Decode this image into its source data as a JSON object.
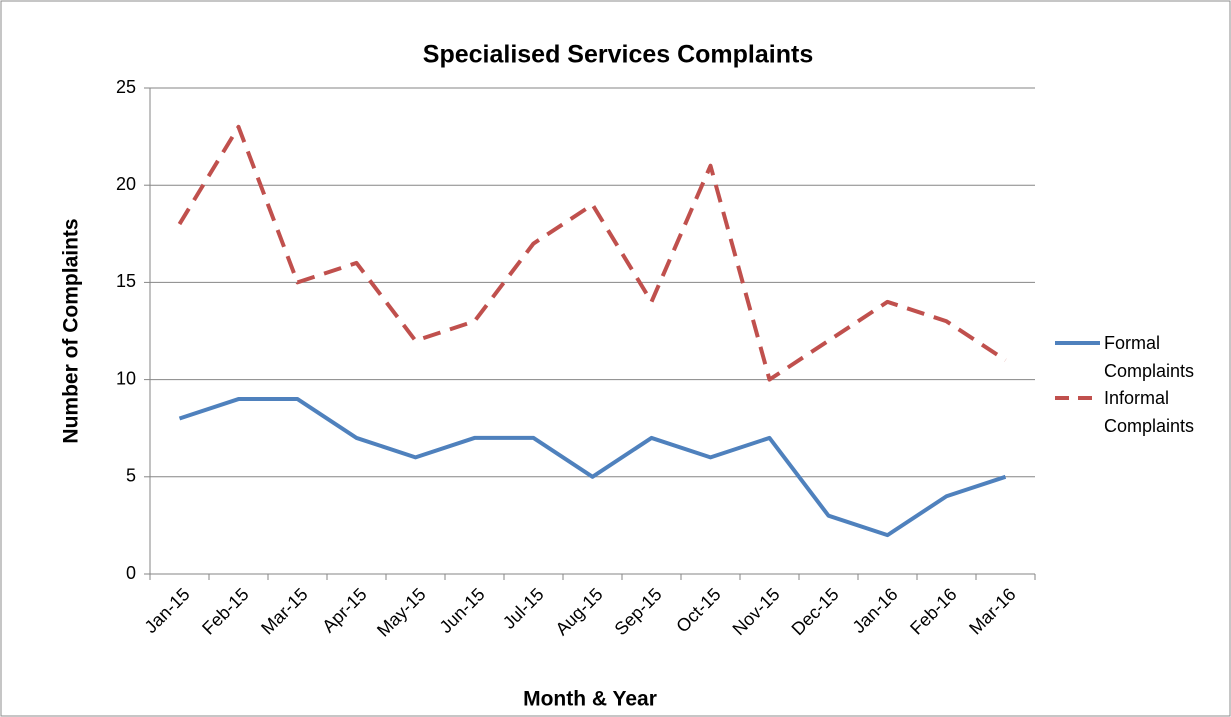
{
  "chart_data": {
    "type": "line",
    "title": "Specialised Services Complaints",
    "x_label": "Month & Year",
    "y_label": "Number of Complaints",
    "categories": [
      "Jan-15",
      "Feb-15",
      "Mar-15",
      "Apr-15",
      "May-15",
      "Jun-15",
      "Jul-15",
      "Aug-15",
      "Sep-15",
      "Oct-15",
      "Nov-15",
      "Dec-15",
      "Jan-16",
      "Feb-16",
      "Mar-16"
    ],
    "series": [
      {
        "name": "Formal Complaints",
        "color": "#4f81bd",
        "dashed": false,
        "values": [
          8,
          9,
          9,
          7,
          6,
          7,
          7,
          5,
          7,
          6,
          7,
          3,
          2,
          4,
          5
        ]
      },
      {
        "name": "Informal Complaints",
        "color": "#c0504d",
        "dashed": true,
        "values": [
          18,
          23,
          15,
          16,
          12,
          13,
          17,
          19,
          14,
          21,
          10,
          12,
          14,
          13,
          11
        ]
      }
    ],
    "ylim": [
      0,
      25
    ],
    "yticks": [
      0,
      5,
      10,
      15,
      20,
      25
    ],
    "grid": true,
    "legend": "right"
  }
}
